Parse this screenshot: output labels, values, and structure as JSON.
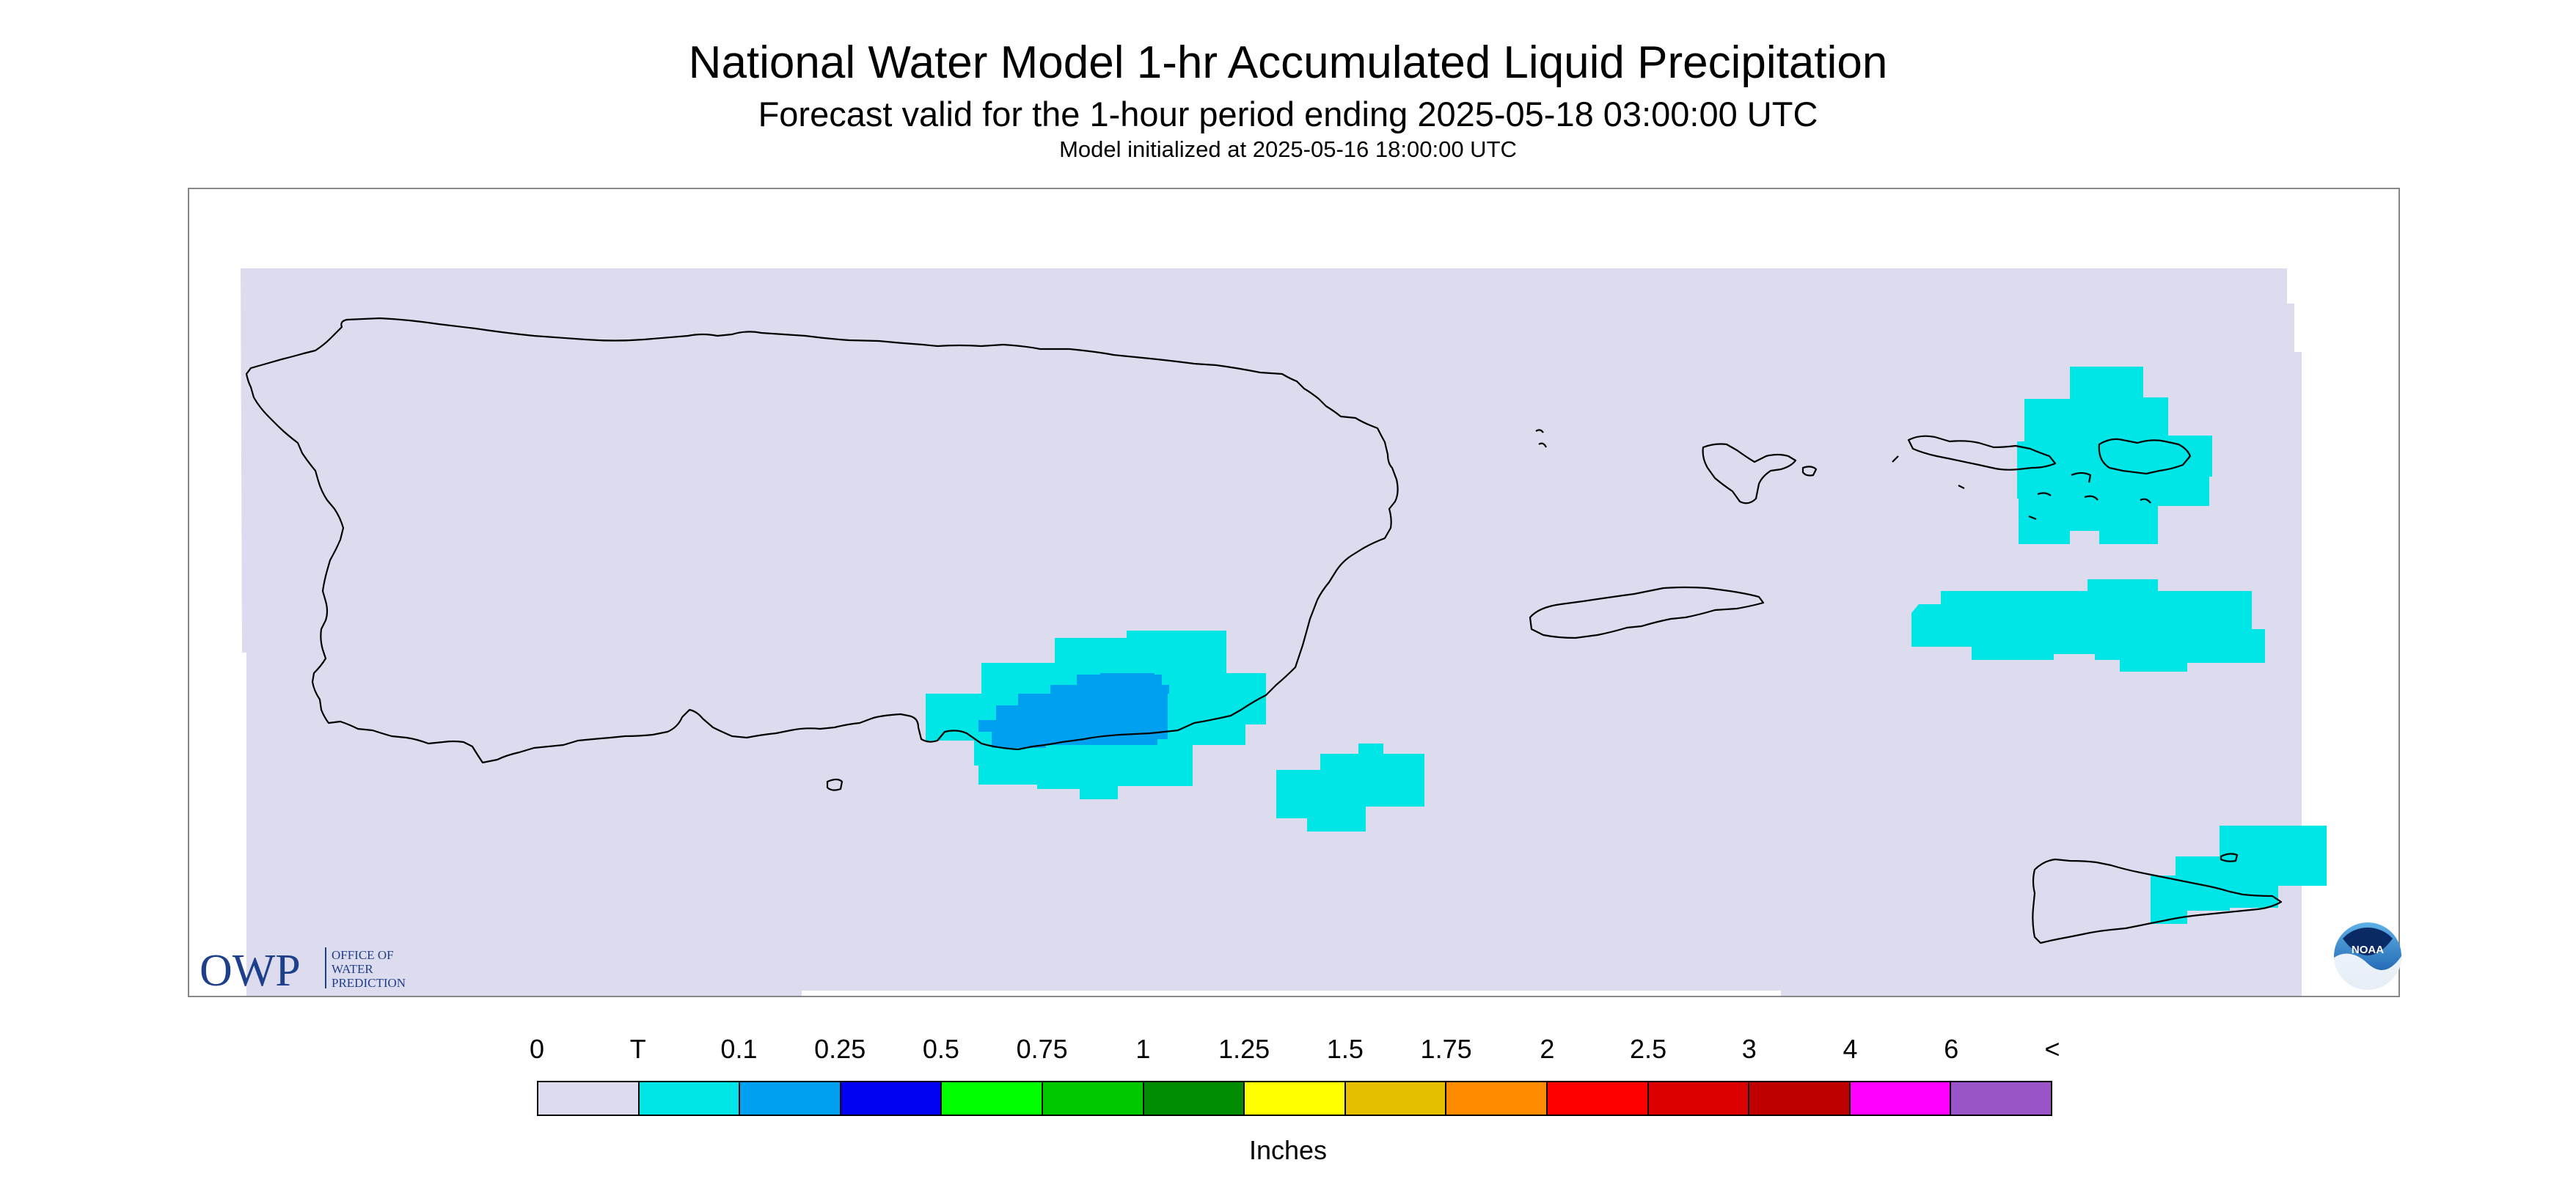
{
  "header": {
    "title": "National Water Model 1-hr Accumulated Liquid Precipitation",
    "subtitle": "Forecast valid for the 1-hour period ending 2025-05-18 03:00:00 UTC",
    "init_line": "Model initialized at 2025-05-16 18:00:00 UTC"
  },
  "map": {
    "background_color": "#dcdcee",
    "coastline_color": "#000000",
    "islands": [
      "Puerto Rico",
      "Vieques",
      "Culebra",
      "St. Thomas",
      "St. John",
      "St. Croix"
    ],
    "precip_areas": [
      {
        "region": "south-central Puerto Rico",
        "max_class": "0.1"
      },
      {
        "region": "offshore southeast of Puerto Rico",
        "max_class": "T"
      },
      {
        "region": "St. Thomas / St. John",
        "max_class": "T"
      },
      {
        "region": "north of St. Croix",
        "max_class": "T"
      },
      {
        "region": "east St. Croix",
        "max_class": "T"
      }
    ]
  },
  "logos": {
    "owp": {
      "mark": "OWP",
      "lines": [
        "OFFICE OF",
        "WATER",
        "PREDICTION"
      ],
      "color": "#1e3f8a"
    },
    "noaa": {
      "text": "NOAA",
      "color": "#1a5ea8"
    }
  },
  "legend": {
    "units": "Inches",
    "labels": [
      "0",
      "T",
      "0.1",
      "0.25",
      "0.5",
      "0.75",
      "1",
      "1.25",
      "1.5",
      "1.75",
      "2",
      "2.5",
      "3",
      "4",
      "6",
      "<"
    ],
    "colors": [
      "#dcdcee",
      "#00e5e5",
      "#00a0f0",
      "#0000f0",
      "#00ff00",
      "#00c800",
      "#008c00",
      "#ffff00",
      "#e6be00",
      "#ff8c00",
      "#ff0000",
      "#dc0000",
      "#be0000",
      "#ff00ff",
      "#9955c8"
    ]
  }
}
